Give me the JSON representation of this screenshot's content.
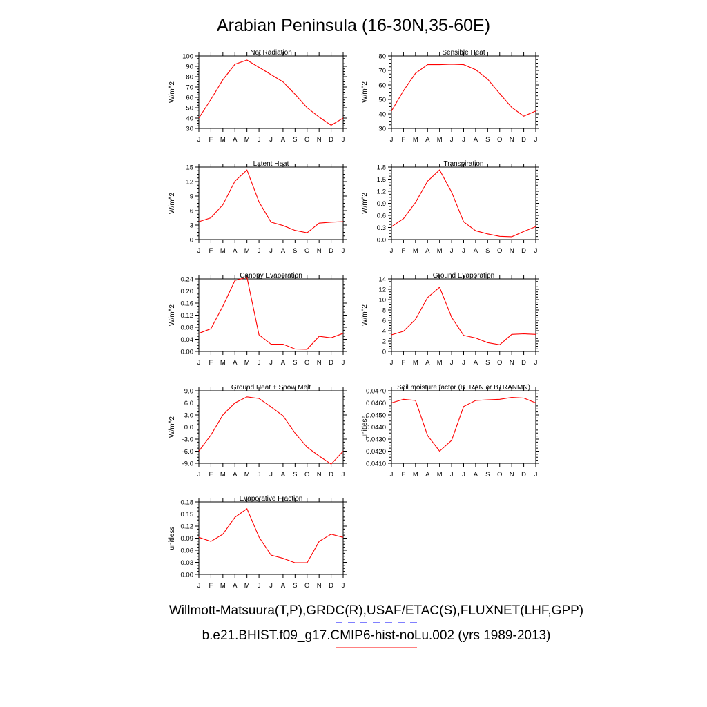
{
  "title": "Arabian Peninsula (16-30N,35-60E)",
  "colors": {
    "model": "#ff0000",
    "obs": "#0000ff",
    "axes": "#000000"
  },
  "footer": {
    "obs_label": "Willmott-Matsuura(T,P),GRDC(R),USAF/ETAC(S),FLUXNET(LHF,GPP)",
    "model_label": "b.e21.BHIST.f09_g17.CMIP6-hist-noLu.002 (yrs 1989-2013)"
  },
  "chart_data": [
    {
      "type": "line",
      "title": "Net Radiation",
      "ylabel": "W/m^2",
      "x": [
        "J",
        "F",
        "M",
        "A",
        "M",
        "J",
        "J",
        "A",
        "S",
        "O",
        "N",
        "D",
        "J"
      ],
      "ylim": [
        30,
        100
      ],
      "yticks": [
        "30",
        "40",
        "50",
        "60",
        "70",
        "80",
        "90",
        "100"
      ],
      "series": [
        {
          "values": [
            40,
            58,
            77,
            92,
            96,
            89,
            82,
            75,
            63,
            50,
            41,
            33,
            40
          ]
        }
      ]
    },
    {
      "type": "line",
      "title": "Sensible Heat",
      "ylabel": "W/m^2",
      "x": [
        "J",
        "F",
        "M",
        "A",
        "M",
        "J",
        "J",
        "A",
        "S",
        "O",
        "N",
        "D",
        "J"
      ],
      "ylim": [
        30,
        80
      ],
      "yticks": [
        "30",
        "40",
        "50",
        "60",
        "70",
        "80"
      ],
      "series": [
        {
          "values": [
            42,
            56,
            68,
            74,
            74,
            74.3,
            74,
            70.5,
            64,
            54,
            44.5,
            38.5,
            42
          ]
        }
      ]
    },
    {
      "type": "line",
      "title": "Latent Heat",
      "ylabel": "W/m^2",
      "x": [
        "J",
        "F",
        "M",
        "A",
        "M",
        "J",
        "J",
        "A",
        "S",
        "O",
        "N",
        "D",
        "J"
      ],
      "ylim": [
        0,
        15
      ],
      "yticks": [
        "0",
        "3",
        "6",
        "9",
        "12",
        "15"
      ],
      "series": [
        {
          "values": [
            3.7,
            4.5,
            7.2,
            12.1,
            14.4,
            7.8,
            3.6,
            2.9,
            1.9,
            1.4,
            3.4,
            3.6,
            3.7
          ]
        }
      ]
    },
    {
      "type": "line",
      "title": "Transpiration",
      "ylabel": "W/m^2",
      "x": [
        "J",
        "F",
        "M",
        "A",
        "M",
        "J",
        "J",
        "A",
        "S",
        "O",
        "N",
        "D",
        "J"
      ],
      "ylim": [
        0,
        1.8
      ],
      "yticks": [
        "0.0",
        "0.3",
        "0.6",
        "0.9",
        "1.2",
        "1.5",
        "1.8"
      ],
      "series": [
        {
          "values": [
            0.32,
            0.52,
            0.92,
            1.45,
            1.73,
            1.18,
            0.44,
            0.22,
            0.14,
            0.08,
            0.07,
            0.2,
            0.32
          ]
        }
      ]
    },
    {
      "type": "line",
      "title": "Canopy Evaporation",
      "ylabel": "W/m^2",
      "x": [
        "J",
        "F",
        "M",
        "A",
        "M",
        "J",
        "J",
        "A",
        "S",
        "O",
        "N",
        "D",
        "J"
      ],
      "ylim": [
        0,
        0.24
      ],
      "yticks": [
        "0.00",
        "0.04",
        "0.08",
        "0.12",
        "0.16",
        "0.20",
        "0.24"
      ],
      "series": [
        {
          "values": [
            0.06,
            0.075,
            0.15,
            0.235,
            0.245,
            0.055,
            0.024,
            0.024,
            0.008,
            0.007,
            0.05,
            0.045,
            0.06
          ]
        }
      ]
    },
    {
      "type": "line",
      "title": "Ground Evaporation",
      "ylabel": "W/m^2",
      "x": [
        "J",
        "F",
        "M",
        "A",
        "M",
        "J",
        "J",
        "A",
        "S",
        "O",
        "N",
        "D",
        "J"
      ],
      "ylim": [
        0,
        14
      ],
      "yticks": [
        "0",
        "2",
        "4",
        "6",
        "8",
        "10",
        "12",
        "14"
      ],
      "series": [
        {
          "values": [
            3.2,
            3.9,
            6.2,
            10.4,
            12.4,
            6.6,
            3.1,
            2.6,
            1.7,
            1.3,
            3.3,
            3.4,
            3.3
          ]
        }
      ]
    },
    {
      "type": "line",
      "title": "Ground Heat + Snow Melt",
      "ylabel": "W/m^2",
      "x": [
        "J",
        "F",
        "M",
        "A",
        "M",
        "J",
        "J",
        "A",
        "S",
        "O",
        "N",
        "D",
        "J"
      ],
      "ylim": [
        -9,
        9
      ],
      "yticks": [
        "-9.0",
        "-6.0",
        "-3.0",
        "0.0",
        "3.0",
        "6.0",
        "9.0"
      ],
      "series": [
        {
          "values": [
            -6.0,
            -2.0,
            3.0,
            6.0,
            7.5,
            7.1,
            5.0,
            2.8,
            -1.5,
            -5.0,
            -7.2,
            -9.2,
            -6.0
          ]
        }
      ]
    },
    {
      "type": "line",
      "title": "Soil moisture factor (BTRAN or BTRANMN)",
      "ylabel": "unitless",
      "x": [
        "J",
        "F",
        "M",
        "A",
        "M",
        "J",
        "J",
        "A",
        "S",
        "O",
        "N",
        "D",
        "J"
      ],
      "ylim": [
        0.041,
        0.047
      ],
      "yticks": [
        "0.0410",
        "0.0420",
        "0.0430",
        "0.0440",
        "0.0450",
        "0.0460",
        "0.0470"
      ],
      "series": [
        {
          "values": [
            0.046,
            0.0463,
            0.0462,
            0.0433,
            0.042,
            0.0429,
            0.0457,
            0.0462,
            0.04625,
            0.0463,
            0.04645,
            0.0464,
            0.046
          ]
        }
      ]
    },
    {
      "type": "line",
      "title": "Evaporative Fraction",
      "ylabel": "unitless",
      "x": [
        "J",
        "F",
        "M",
        "A",
        "M",
        "J",
        "J",
        "A",
        "S",
        "O",
        "N",
        "D",
        "J"
      ],
      "ylim": [
        0,
        0.18
      ],
      "yticks": [
        "0.00",
        "0.03",
        "0.06",
        "0.09",
        "0.12",
        "0.15",
        "0.18"
      ],
      "series": [
        {
          "values": [
            0.092,
            0.082,
            0.1,
            0.142,
            0.163,
            0.093,
            0.048,
            0.04,
            0.029,
            0.029,
            0.082,
            0.1,
            0.092
          ]
        }
      ]
    }
  ]
}
